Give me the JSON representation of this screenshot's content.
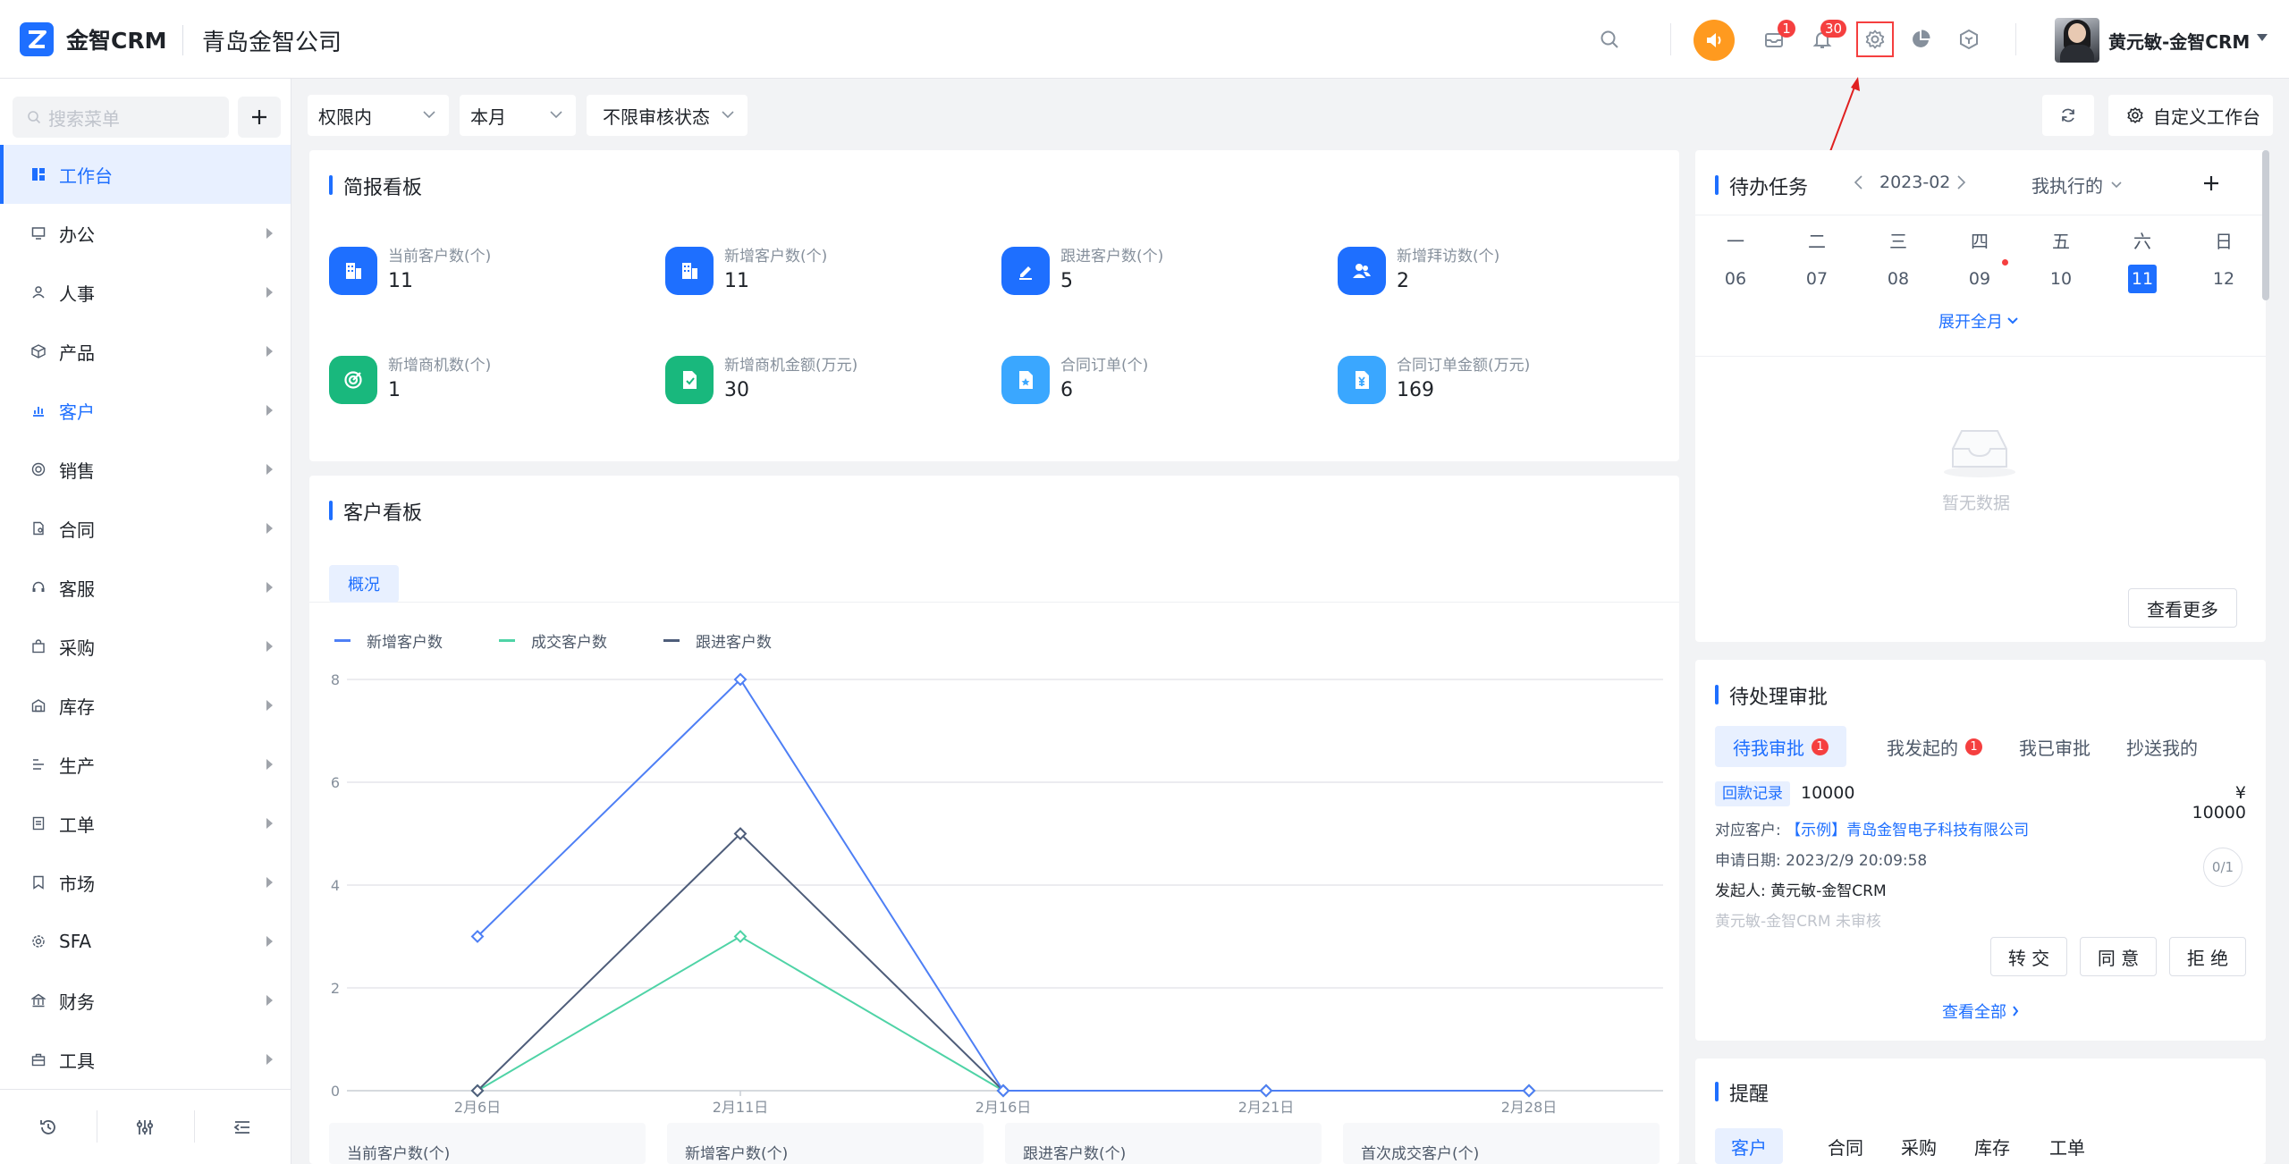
{
  "app": {
    "brand": "金智CRM",
    "company": "青岛金智公司"
  },
  "topbar": {
    "mail_badge": "1",
    "bell_badge": "30",
    "user_name": "黄元敏-金智CRM"
  },
  "sidebar": {
    "search_placeholder": "搜索菜单",
    "items": [
      {
        "label": "工作台",
        "icon": "dashboard-icon"
      },
      {
        "label": "办公",
        "icon": "monitor-icon"
      },
      {
        "label": "人事",
        "icon": "people-icon"
      },
      {
        "label": "产品",
        "icon": "box-icon"
      },
      {
        "label": "客户",
        "icon": "chart-icon"
      },
      {
        "label": "销售",
        "icon": "target-icon"
      },
      {
        "label": "合同",
        "icon": "contract-icon"
      },
      {
        "label": "客服",
        "icon": "headset-icon"
      },
      {
        "label": "采购",
        "icon": "bag-icon"
      },
      {
        "label": "库存",
        "icon": "warehouse-icon"
      },
      {
        "label": "生产",
        "icon": "factory-icon"
      },
      {
        "label": "工单",
        "icon": "ticket-icon"
      },
      {
        "label": "市场",
        "icon": "bookmark-icon"
      },
      {
        "label": "SFA",
        "icon": "settings-cog-icon"
      },
      {
        "label": "财务",
        "icon": "bank-icon"
      },
      {
        "label": "工具",
        "icon": "toolbox-icon"
      }
    ]
  },
  "filters": {
    "scope": "权限内",
    "period": "本月",
    "audit": "不限审核状态",
    "custom_button": "自定义工作台"
  },
  "brief": {
    "title": "简报看板",
    "stats": [
      {
        "label": "当前客户数(个)",
        "value": "11"
      },
      {
        "label": "新增客户数(个)",
        "value": "11"
      },
      {
        "label": "跟进客户数(个)",
        "value": "5"
      },
      {
        "label": "新增拜访数(个)",
        "value": "2"
      },
      {
        "label": "新增商机数(个)",
        "value": "1"
      },
      {
        "label": "新增商机金额(万元)",
        "value": "30"
      },
      {
        "label": "合同订单(个)",
        "value": "6"
      },
      {
        "label": "合同订单金额(万元)",
        "value": "169"
      }
    ]
  },
  "customer_board": {
    "title": "客户看板",
    "tab": "概况",
    "mini_cards": [
      "当前客户数(个)",
      "新增客户数(个)",
      "跟进客户数(个)",
      "首次成交客户(个)"
    ]
  },
  "chart_data": {
    "type": "line",
    "categories": [
      "2月6日",
      "2月11日",
      "2月16日",
      "2月21日",
      "2月28日"
    ],
    "series": [
      {
        "name": "新增客户数",
        "values": [
          3,
          8,
          0,
          0,
          0
        ],
        "color": "#4e7ff5"
      },
      {
        "name": "成交客户数",
        "values": [
          0,
          3,
          0,
          0,
          0
        ],
        "color": "#4fd3a6"
      },
      {
        "name": "跟进客户数",
        "values": [
          0,
          5,
          0,
          0,
          0
        ],
        "color": "#4e5d7a"
      }
    ],
    "y_ticks": [
      "0",
      "2",
      "4",
      "6",
      "8"
    ],
    "ylim": [
      0,
      8
    ],
    "grid": true,
    "legend": "top-left"
  },
  "tasks": {
    "title": "待办任务",
    "month": "2023-02",
    "filter": "我执行的",
    "weekdays": [
      "一",
      "二",
      "三",
      "四",
      "五",
      "六",
      "日"
    ],
    "days": [
      "06",
      "07",
      "08",
      "09",
      "10",
      "11",
      "12"
    ],
    "expand": "展开全月",
    "empty": "暂无数据",
    "more": "查看更多"
  },
  "approvals": {
    "title": "待处理审批",
    "tabs": [
      "待我审批",
      "我发起的",
      "我已审批",
      "抄送我的"
    ],
    "tab_badges": [
      "1",
      "1"
    ],
    "item": {
      "tag": "回款记录",
      "code": "10000",
      "amount": "¥ 10000",
      "customer_label": "对应客户:",
      "customer": "【示例】青岛金智电子科技有限公司",
      "date_label": "申请日期:",
      "date": "2023/2/9 20:09:58",
      "initiator_label": "发起人:",
      "initiator": "黄元敏-金智CRM",
      "status": "黄元敏-金智CRM 未审核",
      "ratio": "0/1"
    },
    "buttons": [
      "转 交",
      "同 意",
      "拒 绝"
    ],
    "view_all": "查看全部"
  },
  "reminder": {
    "title": "提醒",
    "tabs": [
      "客户",
      "合同",
      "采购",
      "库存",
      "工单"
    ]
  },
  "colors": {
    "accent": "#1e6fff",
    "badge": "#f53f3f",
    "speaker": "#ff9a1f"
  }
}
